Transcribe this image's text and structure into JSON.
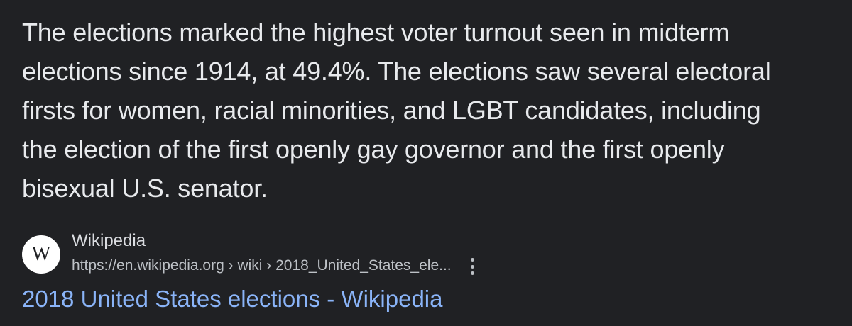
{
  "snippet": {
    "lines": [
      "The elections marked the highest voter turnout seen in midterm",
      "elections since 1914, at 49.4%. The elections saw several electoral",
      "firsts for women, racial minorities, and LGBT candidates, including",
      "the election of the first openly gay governor and the first openly",
      "bisexual U.S. senator."
    ]
  },
  "source": {
    "favicon_letter": "W",
    "favicon_icon": "wikipedia-icon",
    "site_name": "Wikipedia",
    "url": "https://en.wikipedia.org › wiki › 2018_United_States_ele...",
    "more_icon": "more-vert-icon"
  },
  "result": {
    "title": "2018 United States elections - Wikipedia"
  },
  "colors": {
    "background": "#202124",
    "text": "#e8eaed",
    "link": "#8ab4f8",
    "secondary_text": "#bdc1c6"
  }
}
